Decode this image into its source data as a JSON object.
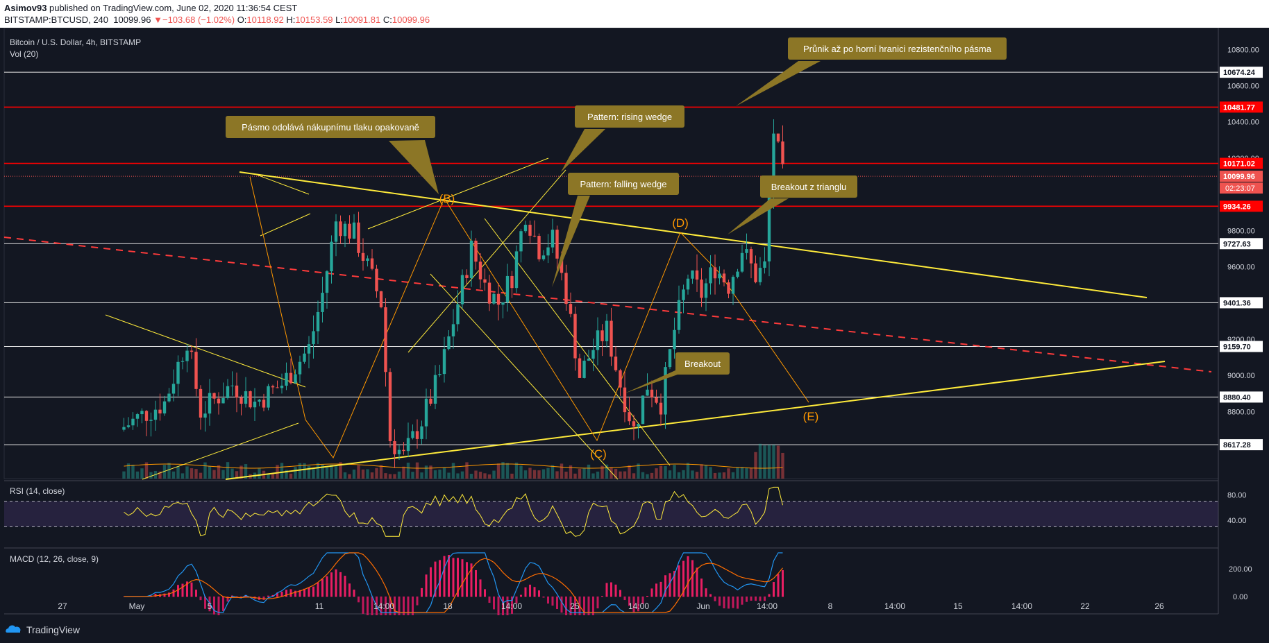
{
  "header": {
    "author": "Asimov93",
    "published": "published on TradingView.com, June 02, 2020 11:36:54 CEST",
    "symbol_line": "BITSTAMP:BTCUSD, 240",
    "last": "10099.96",
    "change_arrow": "▼",
    "change": "−103.68 (−1.02%)",
    "o_label": "O:",
    "o": "10118.92",
    "h_label": "H:",
    "h": "10153.59",
    "l_label": "L:",
    "l": "10091.81",
    "c_label": "C:",
    "c": "10099.96"
  },
  "pane": {
    "title": "Bitcoin / U.S. Dollar, 4h, BITSTAMP",
    "vol": "Vol (20)",
    "rsi": "RSI (14, close)",
    "macd": "MACD (12, 26, close, 9)"
  },
  "footer": {
    "brand": "TradingView"
  },
  "colors": {
    "bg": "#131722",
    "bull": "#26a69a",
    "bear": "#ef5350",
    "trend": "#ffeb3b",
    "wave": "#ff9800",
    "resist": "#ff0000",
    "note": "#8c7626"
  },
  "chart_data": [
    {
      "type": "candlestick",
      "title": "Bitcoin / U.S. Dollar, 4h, BITSTAMP",
      "y_ticks": [
        10800,
        10600,
        10400,
        10200,
        9800,
        9600,
        9200,
        9000,
        8800
      ],
      "x_ticks": [
        "27",
        "May",
        "5",
        "11",
        "14:00",
        "18",
        "14:00",
        "25",
        "14:00",
        "Jun",
        "14:00",
        "8",
        "14:00",
        "15",
        "14:00",
        "22",
        "26"
      ],
      "ylim": [
        8430,
        10920
      ],
      "price_path": [
        [
          0,
          8700
        ],
        [
          5,
          8780
        ],
        [
          10,
          8850
        ],
        [
          15,
          9200
        ],
        [
          18,
          8800
        ],
        [
          25,
          8950
        ],
        [
          30,
          8850
        ],
        [
          36,
          8950
        ],
        [
          42,
          9150
        ],
        [
          45,
          9450
        ],
        [
          48,
          9850
        ],
        [
          52,
          9780
        ],
        [
          55,
          9600
        ],
        [
          58,
          9400
        ],
        [
          60,
          8650
        ],
        [
          63,
          8550
        ],
        [
          67,
          8750
        ],
        [
          71,
          9000
        ],
        [
          75,
          9400
        ],
        [
          78,
          9700
        ],
        [
          81,
          9500
        ],
        [
          84,
          9400
        ],
        [
          87,
          9550
        ],
        [
          90,
          9900
        ],
        [
          93,
          9700
        ],
        [
          96,
          9750
        ],
        [
          99,
          9450
        ],
        [
          102,
          9000
        ],
        [
          105,
          9150
        ],
        [
          108,
          9250
        ],
        [
          111,
          8950
        ],
        [
          114,
          8700
        ],
        [
          117,
          8950
        ],
        [
          120,
          8850
        ],
        [
          123,
          9250
        ],
        [
          126,
          9550
        ],
        [
          129,
          9450
        ],
        [
          132,
          9600
        ],
        [
          135,
          9500
        ],
        [
          138,
          9700
        ],
        [
          141,
          9550
        ],
        [
          143,
          9600
        ],
        [
          145,
          10350
        ],
        [
          147,
          10100
        ]
      ],
      "levels": [
        {
          "label": "10674.24",
          "value": 10674.24,
          "kind": "white"
        },
        {
          "label": "10481.77",
          "value": 10481.77,
          "kind": "red"
        },
        {
          "label": "10171.02",
          "value": 10171.02,
          "kind": "red"
        },
        {
          "label": "10099.96",
          "value": 10099.96,
          "kind": "last"
        },
        {
          "label": "9934.26",
          "value": 9934.26,
          "kind": "red"
        },
        {
          "label": "9727.63",
          "value": 9727.63,
          "kind": "white"
        },
        {
          "label": "9401.36",
          "value": 9401.36,
          "kind": "white"
        },
        {
          "label": "9159.70",
          "value": 9159.7,
          "kind": "white"
        },
        {
          "label": "8880.40",
          "value": 8880.4,
          "kind": "white"
        },
        {
          "label": "8617.28",
          "value": 8617.28,
          "kind": "white"
        }
      ],
      "countdown": "02:23:07",
      "waves": [
        "(B)",
        "(C)",
        "(D)",
        "(E)"
      ],
      "annotations": [
        "Pásmo odolává nákupnímu tlaku opakovaně",
        "Pattern: rising wedge",
        "Pattern: falling wedge",
        "Průnik až po horní hranici rezistenčního pásma",
        "Breakout z trianglu",
        "Breakout"
      ]
    },
    {
      "type": "line",
      "title": "RSI (14, close)",
      "y_ticks": [
        80,
        40
      ],
      "bands": [
        70,
        30
      ]
    },
    {
      "type": "bar",
      "title": "MACD (12, 26, close, 9)",
      "y_ticks": [
        "200.00",
        "0.00"
      ]
    }
  ]
}
